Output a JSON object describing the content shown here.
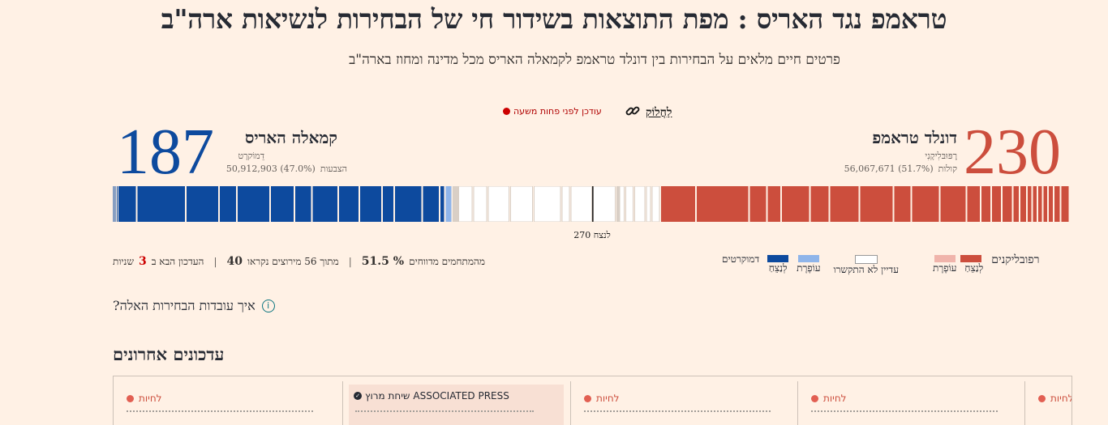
{
  "header": {
    "title": "טראמפ נגד האריס : מפת התוצאות בשידור חי של הבחירות לנשיאות ארה\"ב",
    "subtitle": "פרטים חיים מלאים על הבחירות בין דונלד טראמפ לקמאלה האריס מכל מדינה ומחוז בארה\"ב",
    "updated": "עודכן לפני פחות משעה",
    "share": "לַחֲלוֹק"
  },
  "candidates": {
    "trump": {
      "name": "דונלד טראמפ",
      "party": "רֶפּוּבּלִיקָנִי",
      "electoral": "230",
      "votes_label": "קולות",
      "votes": "56,067,671 (51.7%)"
    },
    "harris": {
      "name": "קמאלה האריס",
      "party": "דֵמוֹקרָט",
      "electoral": "187",
      "votes_label": "הצבעות",
      "votes": "50,912,903 (47.0%)"
    }
  },
  "bar": {
    "target_label": "לנצח 270",
    "total": 538,
    "harris_won": 187,
    "harris_lean": 4,
    "trump_won": 230,
    "trump_lean": 0
  },
  "stats": {
    "percent": "51.5 %",
    "percent_label": "מהמתחמים מדווחים",
    "count": "40",
    "count_label": "מתוך 56 מירוצים נקראו",
    "next_label": "העדכון הבא ב",
    "next_value": "3",
    "next_unit": "שניות"
  },
  "legend": {
    "republicans": "רפובליקנים",
    "democrats": "דמוקרטים",
    "winner": "לְנַצֵחַ",
    "leaning": "עוֹפֶרֶת",
    "not_called": "עדיין לא התקשרו",
    "colors": {
      "dem_won": "#0d4a9e",
      "dem_lean": "#8fb5ea",
      "rep_won": "#cc4e3d",
      "rep_lean": "#f0b4ab",
      "uncalled": "#ffffff"
    }
  },
  "how": "?איך עובדות הבחירות האלה",
  "recent": {
    "heading": "עדכונים אחרונים",
    "live_label": "לחיות",
    "ap_label": "ASSOCIATED PRESS",
    "ap_tag": "שיחת מרוץ"
  }
}
